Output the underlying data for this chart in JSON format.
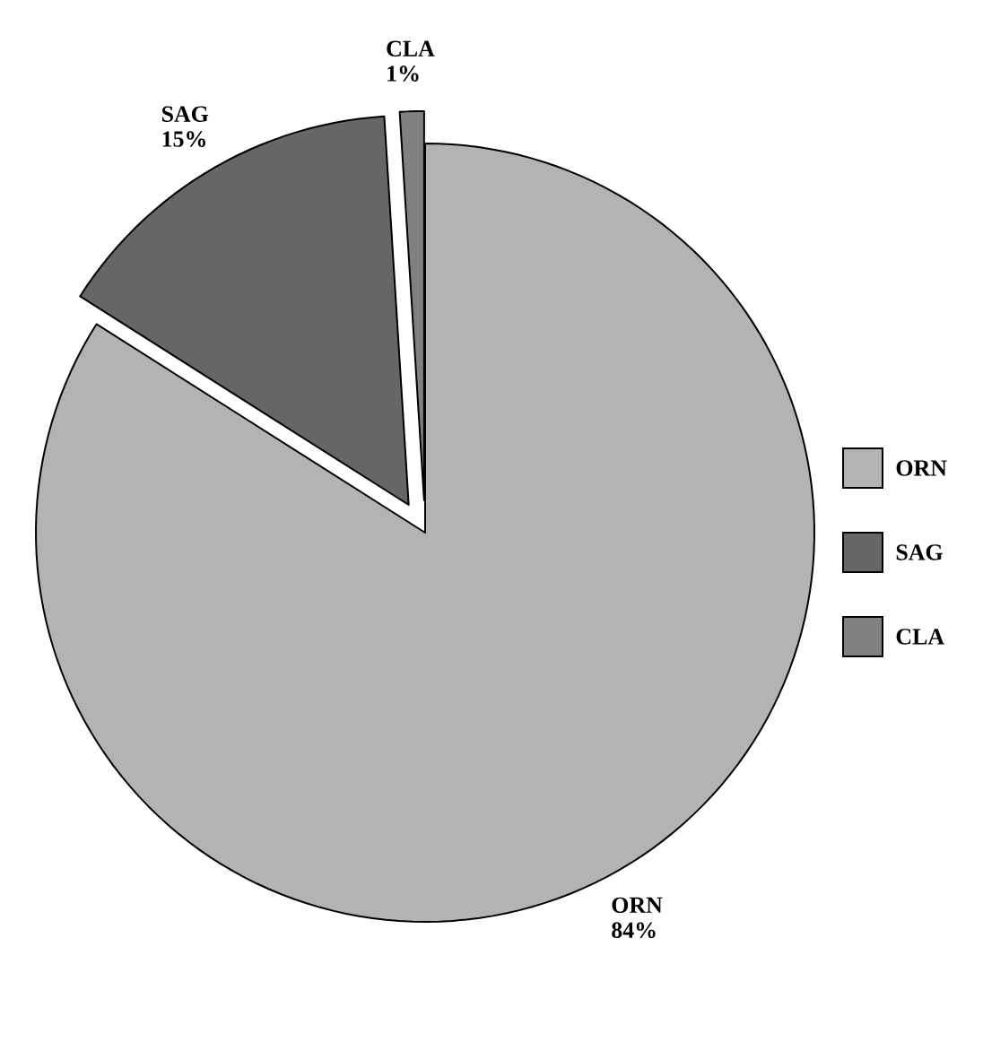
{
  "chart_data": {
    "type": "pie",
    "categories": [
      "ORN",
      "SAG",
      "CLA"
    ],
    "values": [
      84,
      15,
      1
    ],
    "value_labels": [
      "84%",
      "15%",
      "1%"
    ],
    "colors": [
      "#b3b3b3",
      "#666666",
      "#808080"
    ],
    "legend": "right"
  }
}
